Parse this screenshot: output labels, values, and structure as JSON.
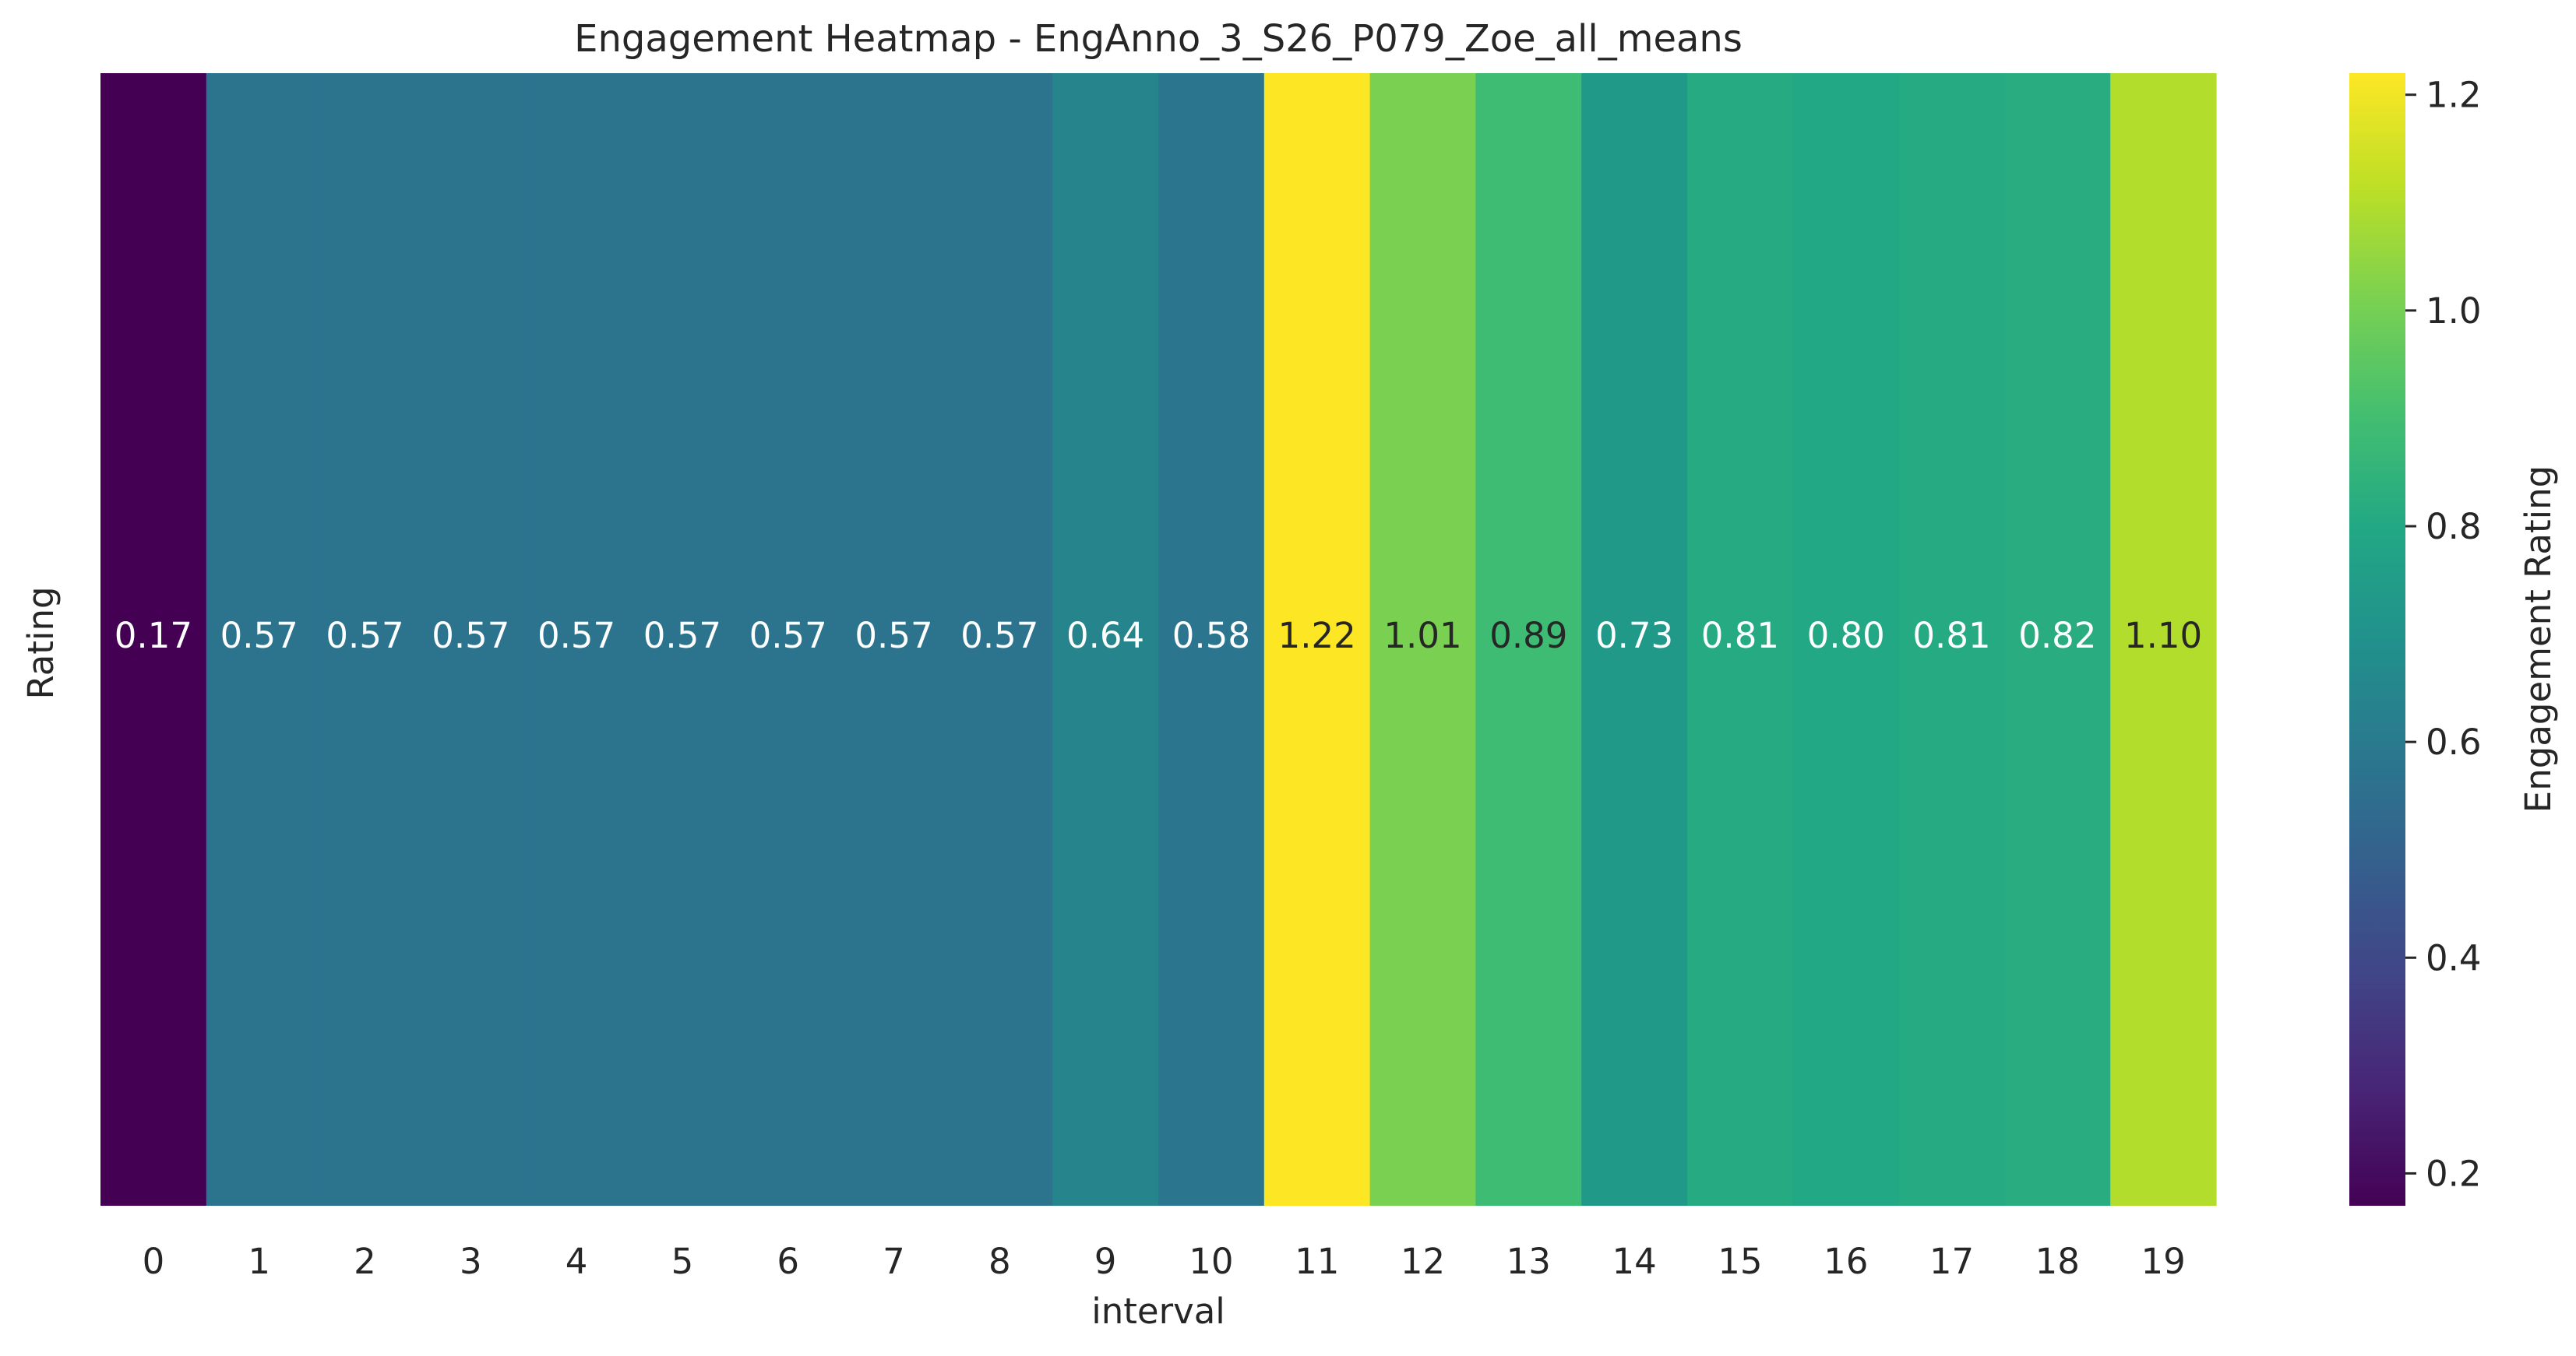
{
  "chart_data": {
    "type": "heatmap",
    "title": "Engagement Heatmap -  EngAnno_3_S26_P079_Zoe_all_means",
    "xlabel": "interval",
    "ylabel": "Rating",
    "x": [
      "0",
      "1",
      "2",
      "3",
      "4",
      "5",
      "6",
      "7",
      "8",
      "9",
      "10",
      "11",
      "12",
      "13",
      "14",
      "15",
      "16",
      "17",
      "18",
      "19"
    ],
    "values": [
      0.17,
      0.57,
      0.57,
      0.57,
      0.57,
      0.57,
      0.57,
      0.57,
      0.57,
      0.64,
      0.58,
      1.22,
      1.01,
      0.89,
      0.73,
      0.81,
      0.8,
      0.81,
      0.82,
      1.1
    ],
    "value_labels": [
      "0.17",
      "0.57",
      "0.57",
      "0.57",
      "0.57",
      "0.57",
      "0.57",
      "0.57",
      "0.57",
      "0.64",
      "0.58",
      "1.22",
      "1.01",
      "0.89",
      "0.73",
      "0.81",
      "0.80",
      "0.81",
      "0.82",
      "1.10"
    ],
    "colormap": "viridis",
    "colorbar": {
      "label": "Engagement Rating",
      "range": [
        0.17,
        1.22
      ],
      "ticks": [
        0.2,
        0.4,
        0.6,
        0.8,
        1.0,
        1.2
      ],
      "tick_labels": [
        "0.2",
        "0.4",
        "0.6",
        "0.8",
        "1.0",
        "1.2"
      ]
    }
  }
}
